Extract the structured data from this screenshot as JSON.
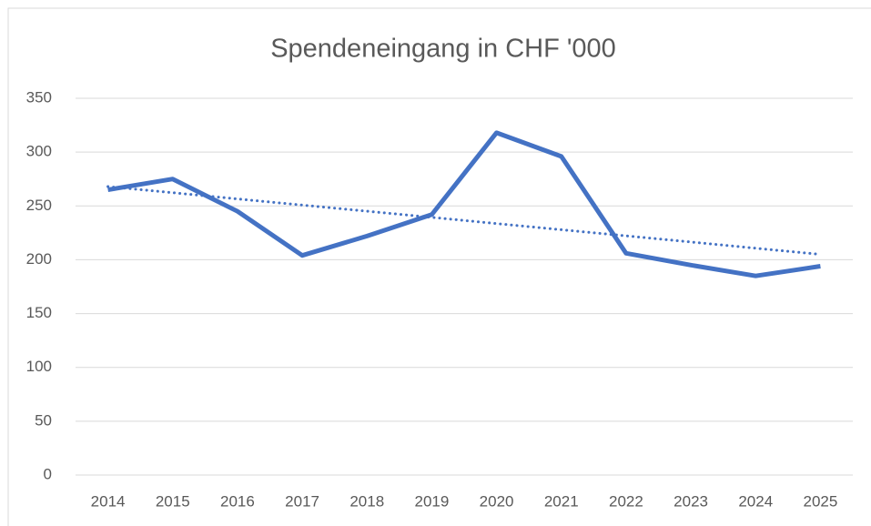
{
  "chart_data": {
    "type": "line",
    "title": "Spendeneingang in CHF '000",
    "categories": [
      "2014",
      "2015",
      "2016",
      "2017",
      "2018",
      "2019",
      "2020",
      "2021",
      "2022",
      "2023",
      "2024",
      "2025"
    ],
    "series": [
      {
        "color": "#4472c4",
        "style": "solid",
        "values": [
          265,
          275,
          245,
          204,
          222,
          242,
          318,
          296,
          206,
          195,
          185,
          194
        ]
      },
      {
        "color": "#4472c4",
        "style": "dotted",
        "values": [
          268,
          262.3,
          256.5,
          250.8,
          245.1,
          239.4,
          233.6,
          227.9,
          222.2,
          216.5,
          210.7,
          205
        ]
      }
    ],
    "ylim": [
      0,
      350
    ],
    "yticks": [
      0,
      50,
      100,
      150,
      200,
      250,
      300,
      350
    ],
    "grid": true
  }
}
